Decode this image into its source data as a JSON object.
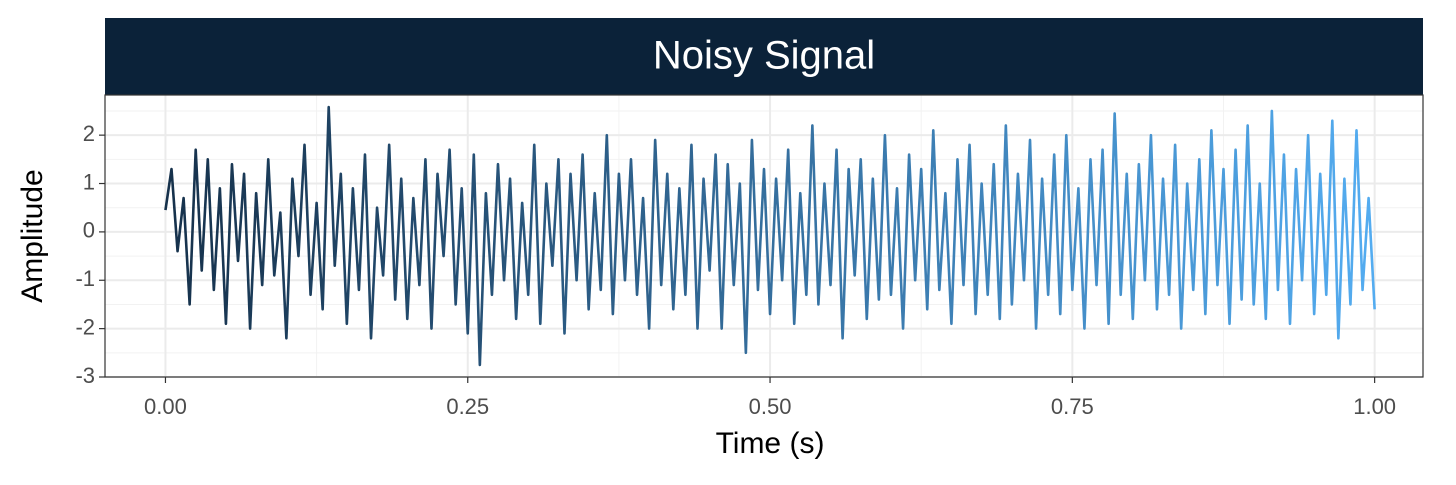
{
  "chart_data": {
    "type": "line",
    "title": "Noisy Signal",
    "xlabel": "Time (s)",
    "ylabel": "Amplitude",
    "x": [
      0,
      0.005,
      0.01,
      0.015,
      0.02,
      0.025,
      0.03,
      0.035,
      0.04,
      0.045,
      0.05,
      0.055,
      0.06,
      0.065,
      0.07,
      0.075,
      0.08,
      0.085,
      0.09,
      0.095,
      0.1,
      0.105,
      0.11,
      0.115,
      0.12,
      0.125,
      0.13,
      0.135,
      0.14,
      0.145,
      0.15,
      0.155,
      0.16,
      0.165,
      0.17,
      0.175,
      0.18,
      0.185,
      0.19,
      0.195,
      0.2,
      0.205,
      0.21,
      0.215,
      0.22,
      0.225,
      0.23,
      0.235,
      0.24,
      0.245,
      0.25,
      0.255,
      0.26,
      0.265,
      0.27,
      0.275,
      0.28,
      0.285,
      0.29,
      0.295,
      0.3,
      0.305,
      0.31,
      0.315,
      0.32,
      0.325,
      0.33,
      0.335,
      0.34,
      0.345,
      0.35,
      0.355,
      0.36,
      0.365,
      0.37,
      0.375,
      0.38,
      0.385,
      0.39,
      0.395,
      0.4,
      0.405,
      0.41,
      0.415,
      0.42,
      0.425,
      0.43,
      0.435,
      0.44,
      0.445,
      0.45,
      0.455,
      0.46,
      0.465,
      0.47,
      0.475,
      0.48,
      0.485,
      0.49,
      0.495,
      0.5,
      0.505,
      0.51,
      0.515,
      0.52,
      0.525,
      0.53,
      0.535,
      0.54,
      0.545,
      0.55,
      0.555,
      0.56,
      0.565,
      0.57,
      0.575,
      0.58,
      0.585,
      0.59,
      0.595,
      0.6,
      0.605,
      0.61,
      0.615,
      0.62,
      0.625,
      0.63,
      0.635,
      0.64,
      0.645,
      0.65,
      0.655,
      0.66,
      0.665,
      0.67,
      0.675,
      0.68,
      0.685,
      0.69,
      0.695,
      0.7,
      0.705,
      0.71,
      0.715,
      0.72,
      0.725,
      0.73,
      0.735,
      0.74,
      0.745,
      0.75,
      0.755,
      0.76,
      0.765,
      0.77,
      0.775,
      0.78,
      0.785,
      0.79,
      0.795,
      0.8,
      0.805,
      0.81,
      0.815,
      0.82,
      0.825,
      0.83,
      0.835,
      0.84,
      0.845,
      0.85,
      0.855,
      0.86,
      0.865,
      0.87,
      0.875,
      0.88,
      0.885,
      0.89,
      0.895,
      0.9,
      0.905,
      0.91,
      0.915,
      0.92,
      0.925,
      0.93,
      0.935,
      0.94,
      0.945,
      0.95,
      0.955,
      0.96,
      0.965,
      0.97,
      0.975,
      0.98,
      0.985,
      0.99,
      0.995,
      1
    ],
    "values": [
      0.45,
      1.3,
      -0.4,
      0.7,
      -1.5,
      1.7,
      -0.8,
      1.5,
      -1.2,
      0.9,
      -1.9,
      1.4,
      -0.6,
      1.2,
      -2.0,
      0.8,
      -1.1,
      1.5,
      -0.9,
      0.4,
      -2.2,
      1.1,
      -0.5,
      1.8,
      -1.3,
      0.6,
      -1.6,
      2.58,
      -0.7,
      1.2,
      -1.9,
      0.9,
      -1.2,
      1.6,
      -2.2,
      0.5,
      -0.9,
      1.8,
      -1.4,
      1.1,
      -1.8,
      0.7,
      -1.1,
      1.5,
      -2.0,
      1.2,
      -0.5,
      1.7,
      -1.5,
      0.9,
      -2.1,
      1.6,
      -2.75,
      0.8,
      -1.3,
      1.4,
      -1.0,
      1.1,
      -1.8,
      0.6,
      -1.3,
      1.8,
      -1.9,
      1.0,
      -0.7,
      1.5,
      -2.1,
      1.2,
      -1.0,
      1.6,
      -1.6,
      0.8,
      -1.2,
      2.0,
      -1.7,
      1.2,
      -1.0,
      1.5,
      -1.3,
      0.7,
      -2.0,
      1.9,
      -1.1,
      1.2,
      -1.6,
      0.9,
      -1.3,
      1.8,
      -2.0,
      1.1,
      -0.8,
      1.6,
      -2.0,
      1.4,
      -1.1,
      1.0,
      -2.5,
      1.9,
      -1.2,
      1.3,
      -1.7,
      1.1,
      -1.0,
      1.7,
      -1.9,
      0.8,
      -1.3,
      2.2,
      -1.5,
      1.0,
      -1.1,
      1.7,
      -2.2,
      1.3,
      -0.9,
      1.5,
      -1.8,
      1.1,
      -1.4,
      2.0,
      -1.3,
      0.9,
      -2.0,
      1.6,
      -1.0,
      1.3,
      -1.6,
      2.1,
      -1.2,
      0.8,
      -1.9,
      1.5,
      -1.1,
      1.8,
      -1.7,
      1.0,
      -1.3,
      1.4,
      -1.8,
      2.2,
      -1.5,
      1.2,
      -1.0,
      1.9,
      -2.0,
      1.1,
      -1.3,
      1.6,
      -1.7,
      2.0,
      -1.2,
      0.9,
      -2.0,
      1.5,
      -1.1,
      1.7,
      -1.9,
      2.45,
      -1.3,
      1.2,
      -1.8,
      1.4,
      -1.0,
      2.0,
      -1.6,
      1.1,
      -1.3,
      1.8,
      -2.0,
      1.0,
      -1.2,
      1.5,
      -1.7,
      2.1,
      -1.1,
      1.3,
      -1.9,
      1.7,
      -1.4,
      2.2,
      -1.5,
      1.0,
      -1.8,
      2.5,
      -1.2,
      1.6,
      -1.9,
      1.3,
      -1.0,
      2.0,
      -1.7,
      1.2,
      -1.3,
      2.3,
      -2.2,
      1.1,
      -1.5,
      2.1,
      -1.2,
      0.7,
      -1.6
    ],
    "gradient": [
      "#132b43",
      "#56b1f7"
    ],
    "xlim": [
      -0.05,
      1.04
    ],
    "ylim": [
      -3,
      2.83
    ],
    "xticks": [
      {
        "value": 0,
        "label": "0.00"
      },
      {
        "value": 0.25,
        "label": "0.25"
      },
      {
        "value": 0.5,
        "label": "0.50"
      },
      {
        "value": 0.75,
        "label": "0.75"
      },
      {
        "value": 1,
        "label": "1.00"
      }
    ],
    "yticks": [
      -3,
      -2,
      -1,
      0,
      1,
      2
    ],
    "xminor": [
      0.125,
      0.375,
      0.625,
      0.875
    ],
    "yminor": [
      -2.5,
      -1.5,
      -0.5,
      0.5,
      1.5,
      2.5
    ],
    "grid": true
  }
}
